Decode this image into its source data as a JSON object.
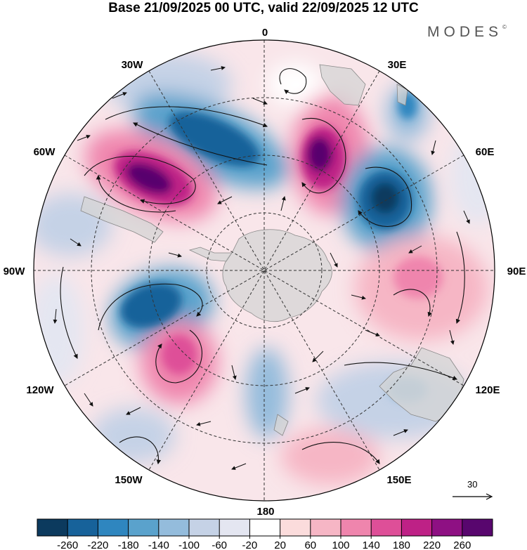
{
  "title": "Base 21/09/2025 00 UTC, valid 22/09/2025 12 UTC",
  "brand": "MODES",
  "brand_mark": "©",
  "longitude_labels": {
    "n0": "0",
    "n30e": "30E",
    "n60e": "60E",
    "n90e": "90E",
    "n120e": "120E",
    "n150e": "150E",
    "n180": "180",
    "n150w": "150W",
    "n120w": "120W",
    "n90w": "90W",
    "n60w": "60W",
    "n30w": "30W"
  },
  "vector_scale": {
    "value": "30",
    "icon": "arrow-right-icon"
  },
  "colorbar": {
    "ticks": [
      "-260",
      "-220",
      "-180",
      "-140",
      "-100",
      "-60",
      "-20",
      "20",
      "60",
      "100",
      "140",
      "180",
      "220",
      "260"
    ],
    "colors": [
      "#0c3a5e",
      "#17629a",
      "#2f86bf",
      "#5aa2cc",
      "#94bcdc",
      "#c5d2e6",
      "#e4e6f1",
      "#ffffff",
      "#fbdcdc",
      "#f6b6c5",
      "#ef85ad",
      "#de4f98",
      "#be2186",
      "#8e1083",
      "#58066e"
    ]
  }
}
